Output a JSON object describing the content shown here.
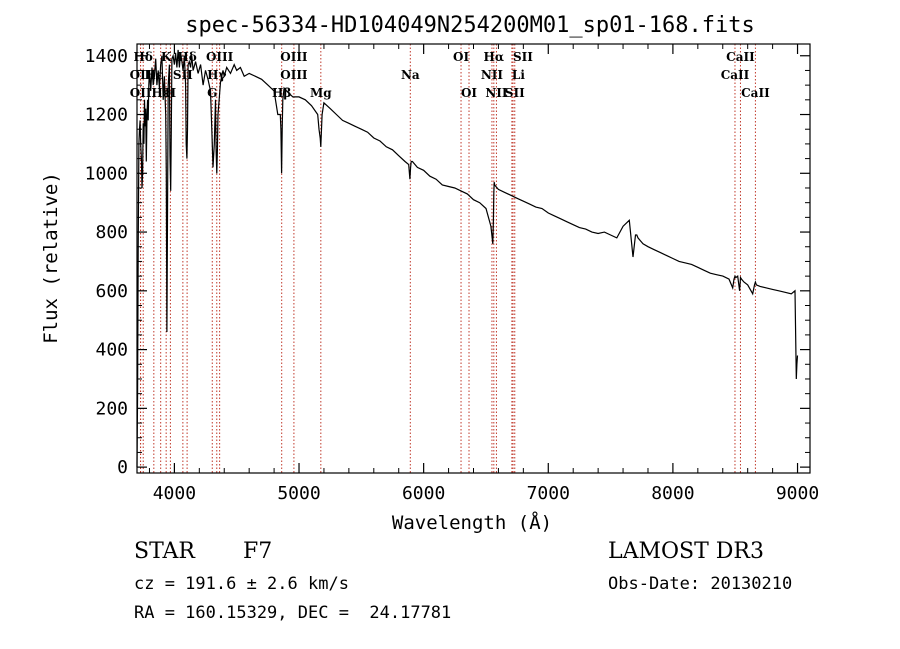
{
  "chart_data": {
    "type": "line",
    "title": "spec-56334-HD104049N254200M01_sp01-168.fits",
    "xlabel": "Wavelength (Å)",
    "ylabel": "Flux (relative)",
    "xlim": [
      3700,
      9100
    ],
    "ylim": [
      -20,
      1440
    ],
    "xticks": [
      4000,
      5000,
      6000,
      7000,
      8000,
      9000
    ],
    "yticks": [
      0,
      200,
      400,
      600,
      800,
      1000,
      1200,
      1400
    ],
    "spectrum": {
      "name": "flux",
      "color": "#000000",
      "x": [
        3700,
        3705,
        3710,
        3715,
        3720,
        3725,
        3730,
        3735,
        3740,
        3745,
        3750,
        3755,
        3760,
        3765,
        3770,
        3775,
        3780,
        3785,
        3790,
        3795,
        3800,
        3810,
        3820,
        3830,
        3840,
        3850,
        3860,
        3870,
        3880,
        3890,
        3900,
        3910,
        3920,
        3930,
        3935,
        3940,
        3950,
        3960,
        3965,
        3970,
        3975,
        3980,
        3990,
        4000,
        4010,
        4020,
        4030,
        4040,
        4050,
        4060,
        4070,
        4080,
        4090,
        4095,
        4100,
        4105,
        4110,
        4120,
        4130,
        4140,
        4150,
        4170,
        4190,
        4210,
        4230,
        4250,
        4270,
        4290,
        4300,
        4310,
        4320,
        4330,
        4335,
        4340,
        4345,
        4350,
        4370,
        4390,
        4400,
        4420,
        4450,
        4480,
        4500,
        4530,
        4560,
        4600,
        4650,
        4700,
        4750,
        4800,
        4830,
        4850,
        4855,
        4860,
        4865,
        4870,
        4880,
        4900,
        4950,
        5000,
        5050,
        5100,
        5150,
        5160,
        5170,
        5175,
        5180,
        5185,
        5200,
        5250,
        5300,
        5350,
        5400,
        5450,
        5500,
        5550,
        5600,
        5650,
        5700,
        5750,
        5800,
        5850,
        5880,
        5890,
        5895,
        5900,
        5910,
        5950,
        6000,
        6050,
        6100,
        6150,
        6200,
        6250,
        6300,
        6350,
        6400,
        6450,
        6500,
        6540,
        6555,
        6560,
        6563,
        6566,
        6570,
        6580,
        6600,
        6650,
        6700,
        6750,
        6800,
        6850,
        6900,
        6950,
        7000,
        7050,
        7100,
        7150,
        7200,
        7250,
        7300,
        7350,
        7400,
        7450,
        7500,
        7550,
        7600,
        7650,
        7680,
        7700,
        7710,
        7720,
        7740,
        7760,
        7800,
        7850,
        7900,
        7950,
        8000,
        8050,
        8100,
        8150,
        8200,
        8250,
        8300,
        8350,
        8400,
        8450,
        8480,
        8490,
        8498,
        8505,
        8520,
        8535,
        8542,
        8550,
        8570,
        8600,
        8640,
        8655,
        8662,
        8670,
        8700,
        8750,
        8800,
        8850,
        8900,
        8950,
        8980,
        8990,
        8995,
        9000
      ],
      "y": [
        0,
        260,
        750,
        1100,
        1150,
        1180,
        1100,
        1050,
        950,
        1000,
        1170,
        1100,
        1250,
        1160,
        1220,
        1040,
        1200,
        1250,
        1180,
        1300,
        1350,
        1280,
        1360,
        1300,
        1330,
        1390,
        1300,
        1350,
        1290,
        1370,
        1400,
        1250,
        1330,
        1200,
        1000,
        460,
        1300,
        1370,
        1060,
        940,
        1150,
        1390,
        1400,
        1370,
        1410,
        1360,
        1420,
        1360,
        1410,
        1380,
        1350,
        1400,
        1300,
        1100,
        1050,
        1150,
        1370,
        1380,
        1360,
        1400,
        1350,
        1380,
        1340,
        1370,
        1300,
        1350,
        1320,
        1280,
        1150,
        1020,
        1100,
        1250,
        1080,
        1000,
        1080,
        1200,
        1310,
        1350,
        1330,
        1360,
        1340,
        1370,
        1350,
        1360,
        1330,
        1340,
        1330,
        1320,
        1300,
        1280,
        1200,
        1200,
        1150,
        1000,
        1150,
        1250,
        1290,
        1280,
        1260,
        1260,
        1250,
        1230,
        1200,
        1150,
        1120,
        1090,
        1150,
        1200,
        1240,
        1220,
        1200,
        1180,
        1170,
        1160,
        1150,
        1140,
        1120,
        1110,
        1090,
        1080,
        1060,
        1040,
        1030,
        980,
        1020,
        1040,
        1040,
        1020,
        1010,
        990,
        980,
        960,
        955,
        950,
        940,
        930,
        910,
        900,
        880,
        820,
        760,
        840,
        930,
        970,
        960,
        955,
        945,
        935,
        925,
        915,
        905,
        895,
        885,
        880,
        865,
        855,
        845,
        835,
        825,
        815,
        810,
        800,
        795,
        800,
        790,
        780,
        820,
        840,
        715,
        790,
        790,
        780,
        770,
        760,
        750,
        740,
        730,
        720,
        710,
        700,
        695,
        690,
        680,
        670,
        660,
        655,
        650,
        640,
        610,
        640,
        650,
        645,
        650,
        600,
        645,
        640,
        630,
        620,
        590,
        620,
        630,
        620,
        615,
        610,
        605,
        600,
        595,
        590,
        600,
        300,
        350,
        380
      ]
    },
    "spectral_lines": [
      {
        "label": "Hδ",
        "wavelength": 3750,
        "row": 1,
        "anchor": "middle"
      },
      {
        "label": "OII",
        "wavelength": 3728,
        "row": 2,
        "anchor": "middle"
      },
      {
        "label": "OII",
        "wavelength": 3729,
        "row": 3,
        "anchor": "middle"
      },
      {
        "label": "Hε",
        "wavelength": 3835,
        "row": 2,
        "anchor": "middle"
      },
      {
        "label": "Hε",
        "wavelength": 3890,
        "row": 3,
        "anchor": "middle"
      },
      {
        "label": "K",
        "wavelength": 3934,
        "row": 1,
        "anchor": "middle"
      },
      {
        "label": "H",
        "wavelength": 3968,
        "row": 3,
        "anchor": "middle"
      },
      {
        "label": "Hδ",
        "wavelength": 4102,
        "row": 1,
        "anchor": "middle"
      },
      {
        "label": "SII",
        "wavelength": 4068,
        "row": 2,
        "anchor": "middle"
      },
      {
        "label": "OIII",
        "wavelength": 4363,
        "row": 1,
        "anchor": "middle"
      },
      {
        "label": "Hγ",
        "wavelength": 4340,
        "row": 2,
        "anchor": "middle"
      },
      {
        "label": "G",
        "wavelength": 4304,
        "row": 3,
        "anchor": "middle"
      },
      {
        "label": "OIII",
        "wavelength": 4959,
        "row": 1,
        "anchor": "middle"
      },
      {
        "label": "OIII",
        "wavelength": 4959,
        "row": 2,
        "anchor": "middle"
      },
      {
        "label": "Hβ",
        "wavelength": 4861,
        "row": 3,
        "anchor": "middle"
      },
      {
        "label": "Mg",
        "wavelength": 5175,
        "row": 3,
        "anchor": "middle"
      },
      {
        "label": "Na",
        "wavelength": 5893,
        "row": 2,
        "anchor": "middle"
      },
      {
        "label": "OI",
        "wavelength": 6300,
        "row": 1,
        "anchor": "middle"
      },
      {
        "label": "OI",
        "wavelength": 6364,
        "row": 3,
        "anchor": "middle"
      },
      {
        "label": "Hα",
        "wavelength": 6563,
        "row": 1,
        "anchor": "middle"
      },
      {
        "label": "NII",
        "wavelength": 6548,
        "row": 2,
        "anchor": "middle"
      },
      {
        "label": "NII",
        "wavelength": 6584,
        "row": 3,
        "anchor": "middle"
      },
      {
        "label": "SII",
        "wavelength": 6717,
        "row": 1,
        "anchor": "start"
      },
      {
        "label": "Li",
        "wavelength": 6708,
        "row": 2,
        "anchor": "start"
      },
      {
        "label": "SII",
        "wavelength": 6731,
        "row": 3,
        "anchor": "middle"
      },
      {
        "label": "CaII",
        "wavelength": 8542,
        "row": 1,
        "anchor": "middle"
      },
      {
        "label": "CaII",
        "wavelength": 8498,
        "row": 2,
        "anchor": "middle"
      },
      {
        "label": "CaII",
        "wavelength": 8662,
        "row": 3,
        "anchor": "middle"
      }
    ]
  },
  "info": {
    "object_class": "STAR",
    "subclass": "F7",
    "survey": "LAMOST DR3",
    "redshift_line": "cz = 191.6 ± 2.6 km/s",
    "obs_date_line": "Obs-Date: 20130210",
    "coords_line": "RA = 160.15329, DEC =  24.17781"
  },
  "colors": {
    "axis": "#000000",
    "line_marker": "#c0392b"
  }
}
